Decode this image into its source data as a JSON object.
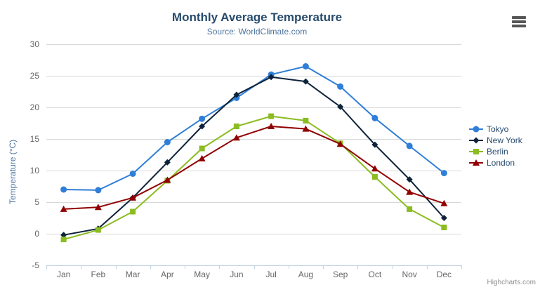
{
  "chart_data": {
    "type": "line",
    "title": "Monthly Average Temperature",
    "subtitle": "Source: WorldClimate.com",
    "categories": [
      "Jan",
      "Feb",
      "Mar",
      "Apr",
      "May",
      "Jun",
      "Jul",
      "Aug",
      "Sep",
      "Oct",
      "Nov",
      "Dec"
    ],
    "series": [
      {
        "name": "Tokyo",
        "color": "#2f7ed8",
        "marker": "circle",
        "values": [
          7.0,
          6.9,
          9.5,
          14.5,
          18.2,
          21.5,
          25.2,
          26.5,
          23.3,
          18.3,
          13.9,
          9.6
        ]
      },
      {
        "name": "New York",
        "color": "#0d233a",
        "marker": "diamond",
        "values": [
          -0.2,
          0.8,
          5.7,
          11.3,
          17.0,
          22.0,
          24.8,
          24.1,
          20.1,
          14.1,
          8.6,
          2.5
        ]
      },
      {
        "name": "Berlin",
        "color": "#8bbc21",
        "marker": "square",
        "values": [
          -0.9,
          0.6,
          3.5,
          8.4,
          13.5,
          17.0,
          18.6,
          17.9,
          14.3,
          9.0,
          3.9,
          1.0
        ]
      },
      {
        "name": "London",
        "color": "#910000",
        "marker": "triangle",
        "values": [
          3.9,
          4.2,
          5.7,
          8.5,
          11.9,
          15.2,
          17.0,
          16.6,
          14.2,
          10.3,
          6.6,
          4.8
        ]
      }
    ],
    "xlabel": "",
    "ylabel": "Temperature (°C)",
    "ylim": [
      -5,
      30
    ],
    "yticks": [
      -5,
      0,
      5,
      10,
      15,
      20,
      25,
      30
    ],
    "grid": true,
    "legend_position": "right"
  },
  "styles": {
    "grid_line_color": "#d8d8d8",
    "axis_line_color": "#c0d0e0",
    "axis_label_color": "#666666",
    "title_color": "#274b6d",
    "subtitle_color": "#4d759e",
    "legend_text_color": "#274b6d",
    "credits_color": "#909090"
  },
  "export_menu": {
    "icon": "hamburger-menu-icon"
  },
  "credits": {
    "label": "Highcharts.com"
  }
}
